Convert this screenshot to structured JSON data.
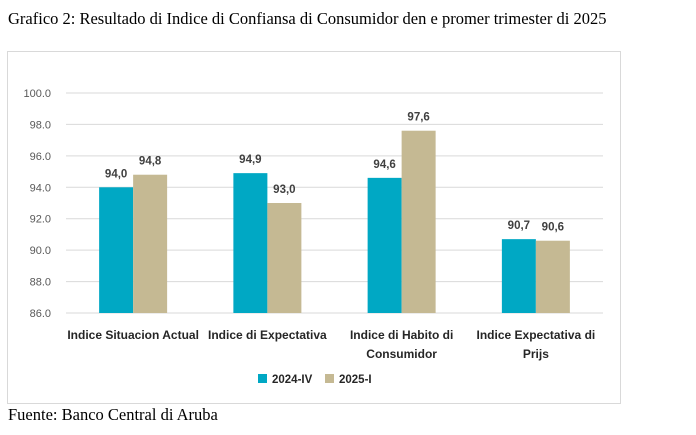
{
  "header": {
    "title": "Grafico 2: Resultado di Indice di Confiansa di Consumidor den e promer trimester di 2025"
  },
  "footer": {
    "source": "Fuente: Banco Central di Aruba"
  },
  "chart_data": {
    "type": "bar",
    "title": "",
    "xlabel": "",
    "ylabel": "",
    "categories": [
      [
        "Indice Situacion Actual"
      ],
      [
        "Indice di Expectativa"
      ],
      [
        "Indice di Habito di",
        "Consumidor"
      ],
      [
        "Indice Expectativa di",
        "Prijs"
      ]
    ],
    "series": [
      {
        "name": "2024-IV",
        "color": "#00a8c4",
        "values": [
          94.0,
          94.9,
          94.6,
          90.7
        ],
        "labels": [
          "94,0",
          "94,9",
          "94,6",
          "90,7"
        ]
      },
      {
        "name": "2025-I",
        "color": "#c5b993",
        "values": [
          94.8,
          93.0,
          97.6,
          90.6
        ],
        "labels": [
          "94,8",
          "93,0",
          "97,6",
          "90,6"
        ]
      }
    ],
    "ylim": [
      86.0,
      100.0
    ],
    "yticks": [
      "86.0",
      "88.0",
      "90.0",
      "92.0",
      "94.0",
      "96.0",
      "98.0",
      "100.0"
    ],
    "grid": true,
    "legend": "bottom-center"
  }
}
